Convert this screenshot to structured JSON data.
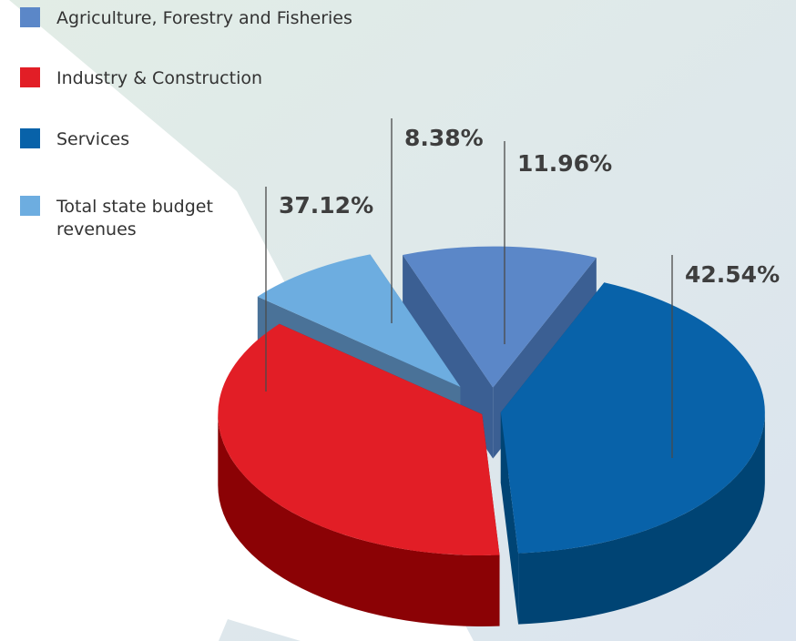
{
  "chart_data": {
    "type": "pie",
    "title": "",
    "slices": [
      {
        "name": "Agriculture, Forestry and Fisheries",
        "value": 11.96,
        "label": "11.96%",
        "color": "#5b87c8"
      },
      {
        "name": "Services",
        "value": 42.54,
        "label": "42.54%",
        "color": "#0862a9"
      },
      {
        "name": "Industry & Construction",
        "value": 37.12,
        "label": "37.12%",
        "color": "#e21e26"
      },
      {
        "name": "Total state budget revenues",
        "value": 8.38,
        "label": "8.38%",
        "color": "#6dade0"
      }
    ],
    "legend_position": "top-left",
    "style": "3d-exploded"
  },
  "legend": [
    {
      "label": "Agriculture, Forestry and Fisheries",
      "color": "#5b87c8"
    },
    {
      "label": "Industry & Construction",
      "color": "#e21e26"
    },
    {
      "label": "Services",
      "color": "#0862a9"
    },
    {
      "label": "Total state budget revenues",
      "color": "#6dade0"
    }
  ],
  "background": {
    "light": "#ffffff",
    "tint": "#e1ece8",
    "tint2": "#dde6ee"
  }
}
